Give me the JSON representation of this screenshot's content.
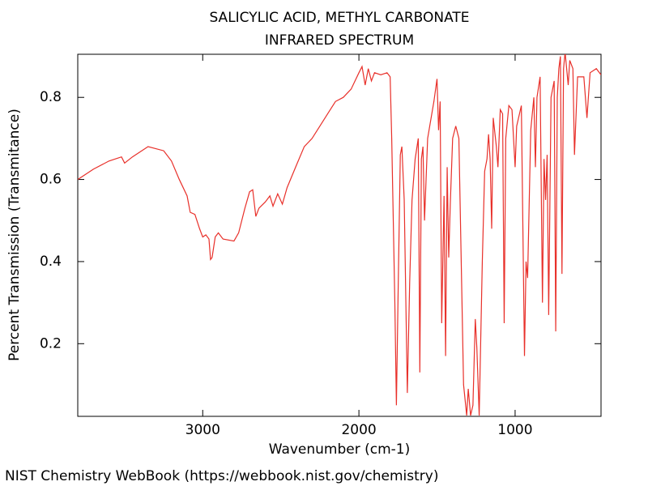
{
  "chart_data": {
    "type": "line",
    "title": "SALICYLIC ACID, METHYL CARBONATE",
    "subtitle": "INFRARED SPECTRUM",
    "x_label": "Wavenumber (cm-1)",
    "y_label": "Percent Transmission (Transmitance)",
    "source": "NIST Chemistry WebBook (https://webbook.nist.gov/chemistry)",
    "xlim": [
      3800,
      450
    ],
    "ylim": [
      0.023,
      0.905
    ],
    "xticks": [
      3000,
      2000,
      1000
    ],
    "yticks": [
      0.2,
      0.4,
      0.6,
      0.8
    ],
    "grid": false,
    "series": [
      {
        "color": "#e8302a",
        "x": [
          3800,
          3700,
          3600,
          3520,
          3500,
          3450,
          3350,
          3300,
          3250,
          3200,
          3150,
          3100,
          3080,
          3050,
          3020,
          3000,
          2980,
          2960,
          2950,
          2940,
          2920,
          2900,
          2870,
          2800,
          2770,
          2730,
          2700,
          2680,
          2660,
          2640,
          2600,
          2570,
          2550,
          2520,
          2490,
          2460,
          2400,
          2350,
          2300,
          2250,
          2200,
          2150,
          2100,
          2050,
          2000,
          1980,
          1960,
          1940,
          1920,
          1900,
          1860,
          1820,
          1800,
          1790,
          1770,
          1760,
          1750,
          1735,
          1725,
          1710,
          1690,
          1675,
          1660,
          1640,
          1620,
          1610,
          1600,
          1590,
          1580,
          1560,
          1520,
          1500,
          1490,
          1480,
          1470,
          1455,
          1445,
          1435,
          1425,
          1415,
          1400,
          1380,
          1360,
          1330,
          1310,
          1300,
          1285,
          1270,
          1255,
          1245,
          1230,
          1210,
          1195,
          1180,
          1170,
          1160,
          1150,
          1140,
          1120,
          1110,
          1095,
          1080,
          1070,
          1060,
          1040,
          1020,
          1000,
          990,
          960,
          940,
          930,
          920,
          900,
          880,
          870,
          860,
          840,
          825,
          815,
          805,
          795,
          785,
          770,
          750,
          740,
          730,
          720,
          710,
          700,
          690,
          680,
          660,
          650,
          630,
          620,
          600,
          560,
          540,
          520,
          480,
          450
        ],
        "values": [
          0.6,
          0.625,
          0.645,
          0.655,
          0.64,
          0.655,
          0.68,
          0.675,
          0.67,
          0.645,
          0.6,
          0.56,
          0.52,
          0.515,
          0.48,
          0.46,
          0.465,
          0.455,
          0.405,
          0.41,
          0.46,
          0.47,
          0.455,
          0.45,
          0.47,
          0.53,
          0.57,
          0.575,
          0.51,
          0.53,
          0.545,
          0.56,
          0.535,
          0.565,
          0.54,
          0.58,
          0.635,
          0.68,
          0.7,
          0.73,
          0.76,
          0.79,
          0.8,
          0.82,
          0.86,
          0.875,
          0.83,
          0.87,
          0.84,
          0.86,
          0.855,
          0.86,
          0.85,
          0.7,
          0.3,
          0.05,
          0.3,
          0.66,
          0.68,
          0.55,
          0.08,
          0.35,
          0.55,
          0.65,
          0.7,
          0.13,
          0.65,
          0.68,
          0.5,
          0.7,
          0.79,
          0.845,
          0.72,
          0.79,
          0.25,
          0.56,
          0.17,
          0.63,
          0.41,
          0.54,
          0.7,
          0.73,
          0.7,
          0.1,
          0.025,
          0.09,
          0.025,
          0.05,
          0.26,
          0.19,
          0.025,
          0.4,
          0.62,
          0.65,
          0.71,
          0.65,
          0.48,
          0.75,
          0.68,
          0.63,
          0.77,
          0.76,
          0.25,
          0.7,
          0.78,
          0.77,
          0.63,
          0.73,
          0.78,
          0.17,
          0.4,
          0.36,
          0.72,
          0.8,
          0.63,
          0.8,
          0.85,
          0.3,
          0.65,
          0.55,
          0.66,
          0.27,
          0.8,
          0.84,
          0.23,
          0.8,
          0.87,
          0.9,
          0.37,
          0.87,
          0.91,
          0.83,
          0.89,
          0.87,
          0.66,
          0.85,
          0.85,
          0.75,
          0.86,
          0.87,
          0.855
        ]
      }
    ]
  }
}
